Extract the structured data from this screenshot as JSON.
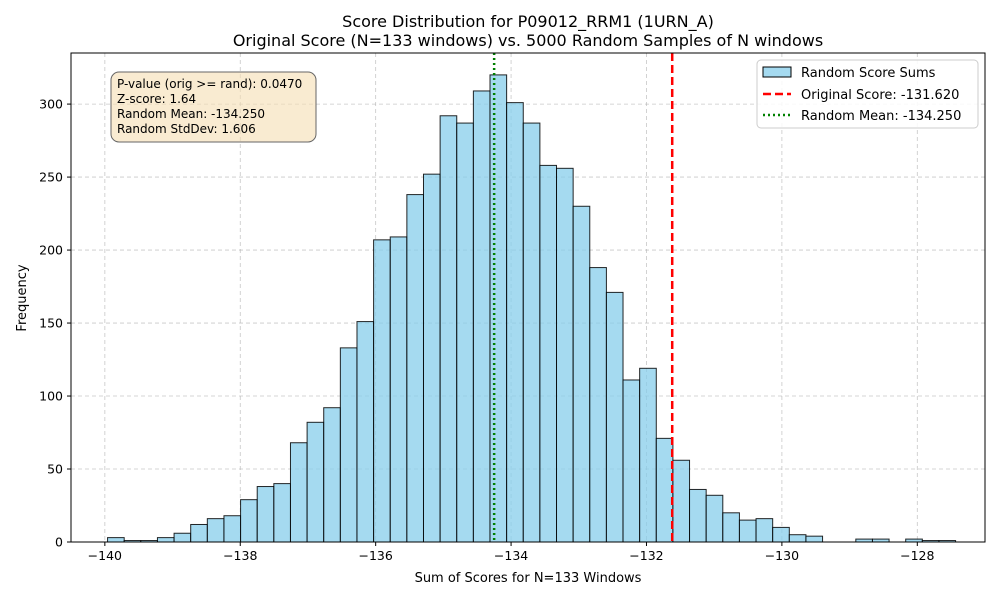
{
  "chart_data": {
    "type": "bar",
    "title": "Score Distribution for P09012_RRM1 (1URN_A)",
    "subtitle": "Original Score (N=133 windows) vs. 5000 Random Samples of N windows",
    "xlabel": "Sum of Scores for N=133 Windows",
    "ylabel": "Frequency",
    "xlim": [
      -140.5,
      -127.0
    ],
    "ylim": [
      0,
      335
    ],
    "xticks": [
      -140,
      -138,
      -136,
      -134,
      -132,
      -130,
      -128
    ],
    "xtick_labels": [
      "−140",
      "−138",
      "−136",
      "−134",
      "−132",
      "−130",
      "−128"
    ],
    "yticks": [
      0,
      50,
      100,
      150,
      200,
      250,
      300
    ],
    "grid": true,
    "legend_position": "top-right",
    "bins": {
      "start": -139.96,
      "width": 0.2456,
      "counts": [
        3,
        1,
        1,
        3,
        6,
        12,
        16,
        18,
        29,
        38,
        40,
        68,
        82,
        92,
        133,
        151,
        207,
        209,
        238,
        252,
        292,
        287,
        309,
        320,
        301,
        287,
        258,
        256,
        230,
        188,
        171,
        111,
        119,
        71,
        56,
        36,
        32,
        20,
        15,
        16,
        10,
        5,
        4,
        0,
        0,
        2,
        2,
        0,
        2,
        1,
        1
      ]
    },
    "series": [
      {
        "name": "Random Score Sums",
        "kind": "histogram",
        "fill": "#87ceeb",
        "edge": "#000000"
      },
      {
        "name": "Original Score: -131.620",
        "kind": "vline",
        "x": -131.62,
        "color": "#ff0000",
        "style": "dashed"
      },
      {
        "name": "Random Mean: -134.250",
        "kind": "vline",
        "x": -134.25,
        "color": "#008000",
        "style": "dotted"
      }
    ],
    "stats_box": [
      "P-value (orig >= rand): 0.0470",
      "Z-score: 1.64",
      "Random Mean: -134.250",
      "Random StdDev: 1.606"
    ],
    "stats_box_color": "#f5deb3"
  }
}
